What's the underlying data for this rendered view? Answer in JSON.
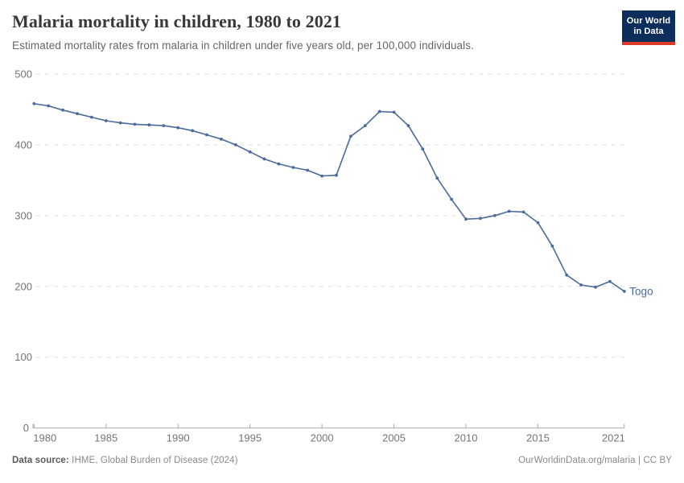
{
  "header": {
    "title": "Malaria mortality in children, 1980 to 2021",
    "subtitle": "Estimated mortality rates from malaria in children under five years old, per 100,000 individuals.",
    "logo": {
      "line1": "Our World",
      "line2": "in Data"
    }
  },
  "chart_data": {
    "type": "line",
    "title": "Malaria mortality in children, 1980 to 2021",
    "xlabel": "",
    "ylabel": "",
    "xlim": [
      1980,
      2021
    ],
    "ylim": [
      0,
      500
    ],
    "grid": "horizontal-dashed",
    "legend_position": "end-of-line-label",
    "xticks": [
      1980,
      1985,
      1990,
      1995,
      2000,
      2005,
      2010,
      2015,
      2021
    ],
    "yticks": [
      0,
      100,
      200,
      300,
      400,
      500
    ],
    "x": [
      1980,
      1981,
      1982,
      1983,
      1984,
      1985,
      1986,
      1987,
      1988,
      1989,
      1990,
      1991,
      1992,
      1993,
      1994,
      1995,
      1996,
      1997,
      1998,
      1999,
      2000,
      2001,
      2002,
      2003,
      2004,
      2005,
      2006,
      2007,
      2008,
      2009,
      2010,
      2011,
      2012,
      2013,
      2014,
      2015,
      2016,
      2017,
      2018,
      2019,
      2020,
      2021
    ],
    "series": [
      {
        "name": "Togo",
        "color": "#4c6a9c",
        "values": [
          458,
          455,
          449,
          444,
          439,
          434,
          431,
          429,
          428,
          427,
          424,
          420,
          414,
          408,
          400,
          390,
          380,
          373,
          368,
          364,
          356,
          357,
          412,
          427,
          447,
          446,
          427,
          394,
          353,
          323,
          295,
          296,
          300,
          306,
          305,
          290,
          257,
          216,
          202,
          199,
          207,
          193
        ]
      }
    ]
  },
  "footer": {
    "source_label": "Data source:",
    "source_value": " IHME, Global Burden of Disease (2024)",
    "right_text": "OurWorldinData.org/malaria | CC BY"
  },
  "colors": {
    "line": "#4c6a9c",
    "grid": "#dddddd",
    "axis": "#a8a8a8",
    "tick_text": "#757575",
    "logo_bg": "#0d2e5a",
    "logo_bar": "#dc3a2a"
  }
}
